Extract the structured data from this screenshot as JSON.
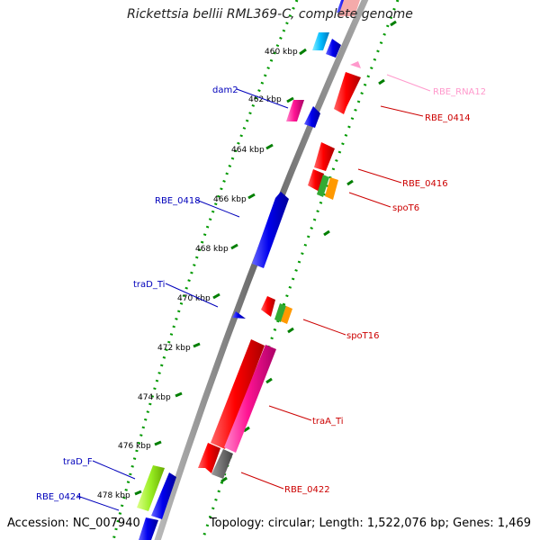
{
  "title": "Rickettsia bellii RML369-C, complete genome",
  "footer": {
    "accession": "Accession: NC_007940",
    "summary": "Topology: circular; Length: 1,522,076 bp; Genes: 1,469"
  },
  "colors": {
    "backbone": "#7f7f7f",
    "tick_major": "#007f00",
    "tick_minor": "#009900",
    "forward_label": "#0000bb",
    "reverse_label": "#cc0000",
    "rna_label": "#ff99cc"
  },
  "ticks": [
    {
      "label": "460 kbp"
    },
    {
      "label": "462 kbp"
    },
    {
      "label": "464 kbp"
    },
    {
      "label": "466 kbp"
    },
    {
      "label": "468 kbp"
    },
    {
      "label": "470 kbp"
    },
    {
      "label": "472 kbp"
    },
    {
      "label": "474 kbp"
    },
    {
      "label": "476 kbp"
    },
    {
      "label": "478 kbp"
    }
  ],
  "genes": [
    {
      "name": "dam2",
      "strand": "forward",
      "color": "#0000ee"
    },
    {
      "name": "RBE_0418",
      "strand": "forward",
      "color": "#0000ee"
    },
    {
      "name": "traD_Ti",
      "strand": "forward",
      "color": "#0000ee"
    },
    {
      "name": "traD_F",
      "strand": "forward",
      "color": "#0000ee"
    },
    {
      "name": "RBE_0424",
      "strand": "forward",
      "color": "#0000ee"
    },
    {
      "name": "RBE_RNA12",
      "strand": "reverse",
      "color": "#ff99cc"
    },
    {
      "name": "RBE_0414",
      "strand": "reverse",
      "color": "#ee0000"
    },
    {
      "name": "RBE_0416",
      "strand": "reverse",
      "color": "#ee0000"
    },
    {
      "name": "spoT6",
      "strand": "reverse",
      "color": "#ee0000"
    },
    {
      "name": "spoT16",
      "strand": "reverse",
      "color": "#ee0000"
    },
    {
      "name": "traA_Ti",
      "strand": "reverse",
      "color": "#ee0000"
    },
    {
      "name": "RBE_0422",
      "strand": "reverse",
      "color": "#ee0000"
    }
  ]
}
